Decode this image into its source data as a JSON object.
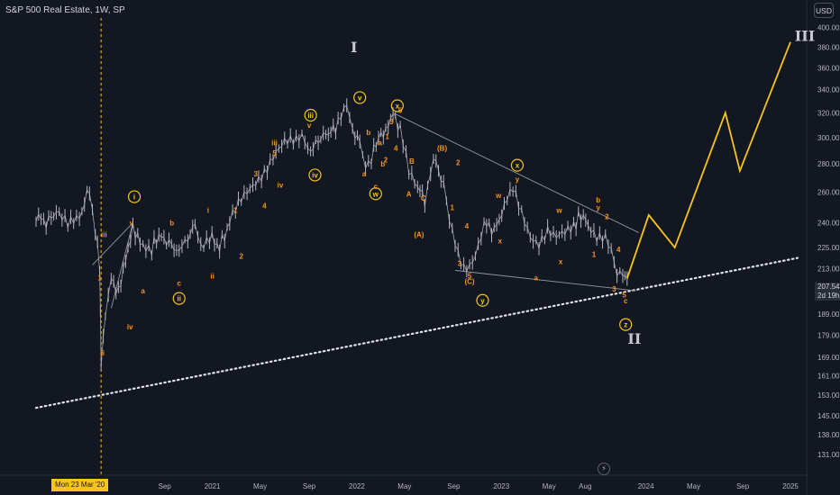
{
  "chart_data": {
    "type": "line",
    "title": "S&P 500 Real Estate, 1W, SP",
    "currency": "USD",
    "ylim": [
      125,
      410
    ],
    "y_ticks": [
      400,
      380,
      360,
      340,
      320,
      300,
      280,
      260,
      240,
      225,
      213,
      201,
      189,
      179,
      169,
      161,
      153,
      145,
      138,
      131
    ],
    "x_ticks": [
      "2020",
      "Sep",
      "2021",
      "May",
      "Sep",
      "2022",
      "May",
      "Sep",
      "2023",
      "May",
      "Aug",
      "2024",
      "May",
      "Sep",
      "2025"
    ],
    "last_price": "207.54",
    "countdown": "2d 19h",
    "cursor_date": "Mon 23 Mar '20",
    "grid": false,
    "price_series": [
      [
        2019.78,
        245
      ],
      [
        2019.85,
        240
      ],
      [
        2019.92,
        247
      ],
      [
        2020.0,
        238
      ],
      [
        2020.08,
        243
      ],
      [
        2020.15,
        263
      ],
      [
        2020.19,
        235
      ],
      [
        2020.22,
        215
      ],
      [
        2020.23,
        165
      ],
      [
        2020.26,
        190
      ],
      [
        2020.3,
        207
      ],
      [
        2020.35,
        200
      ],
      [
        2020.4,
        218
      ],
      [
        2020.45,
        237
      ],
      [
        2020.5,
        228
      ],
      [
        2020.58,
        225
      ],
      [
        2020.63,
        232
      ],
      [
        2020.7,
        228
      ],
      [
        2020.77,
        222
      ],
      [
        2020.83,
        230
      ],
      [
        2020.88,
        240
      ],
      [
        2020.92,
        227
      ],
      [
        2020.98,
        232
      ],
      [
        2021.05,
        225
      ],
      [
        2021.12,
        240
      ],
      [
        2021.2,
        255
      ],
      [
        2021.28,
        266
      ],
      [
        2021.36,
        275
      ],
      [
        2021.42,
        285
      ],
      [
        2021.5,
        295
      ],
      [
        2021.58,
        297
      ],
      [
        2021.62,
        302
      ],
      [
        2021.68,
        290
      ],
      [
        2021.75,
        300
      ],
      [
        2021.82,
        305
      ],
      [
        2021.87,
        310
      ],
      [
        2021.93,
        325
      ],
      [
        2021.97,
        305
      ],
      [
        2022.02,
        297
      ],
      [
        2022.06,
        280
      ],
      [
        2022.1,
        285
      ],
      [
        2022.15,
        300
      ],
      [
        2022.2,
        305
      ],
      [
        2022.25,
        320
      ],
      [
        2022.3,
        305
      ],
      [
        2022.36,
        275
      ],
      [
        2022.42,
        265
      ],
      [
        2022.47,
        255
      ],
      [
        2022.53,
        285
      ],
      [
        2022.6,
        265
      ],
      [
        2022.64,
        240
      ],
      [
        2022.7,
        220
      ],
      [
        2022.74,
        213
      ],
      [
        2022.78,
        215
      ],
      [
        2022.82,
        222
      ],
      [
        2022.88,
        240
      ],
      [
        2022.95,
        235
      ],
      [
        2023.02,
        250
      ],
      [
        2023.08,
        262
      ],
      [
        2023.14,
        247
      ],
      [
        2023.2,
        233
      ],
      [
        2023.26,
        228
      ],
      [
        2023.32,
        235
      ],
      [
        2023.38,
        230
      ],
      [
        2023.44,
        233
      ],
      [
        2023.5,
        238
      ],
      [
        2023.55,
        245
      ],
      [
        2023.6,
        240
      ],
      [
        2023.66,
        232
      ],
      [
        2023.72,
        230
      ],
      [
        2023.76,
        222
      ],
      [
        2023.8,
        208
      ],
      [
        2023.84,
        210
      ],
      [
        2023.87,
        207.54
      ]
    ],
    "projection": [
      [
        2023.87,
        207.54
      ],
      [
        2024.02,
        245
      ],
      [
        2024.2,
        225
      ],
      [
        2024.55,
        320
      ],
      [
        2024.65,
        275
      ],
      [
        2025.0,
        385
      ]
    ],
    "trendlines": [
      {
        "name": "long-term support",
        "points": [
          [
            2019.78,
            148
          ],
          [
            2025.05,
            219
          ]
        ],
        "style": "dotted"
      },
      {
        "name": "upper channel",
        "points": [
          [
            2022.25,
            320
          ],
          [
            2023.95,
            234
          ]
        ],
        "style": "solid"
      },
      {
        "name": "lower channel",
        "points": [
          [
            2022.68,
            212
          ],
          [
            2023.93,
            201
          ]
        ],
        "style": "solid"
      },
      {
        "name": "early wave line 1",
        "points": [
          [
            2020.17,
            215
          ],
          [
            2020.45,
            240
          ]
        ],
        "style": "solid"
      },
      {
        "name": "early wave line 2",
        "points": [
          [
            2020.3,
            192
          ],
          [
            2020.45,
            240
          ]
        ],
        "style": "solid"
      }
    ],
    "cursor_line_x": 2020.23,
    "annotations": [
      {
        "text": "I",
        "x": 2021.98,
        "y": 375,
        "kind": "roman"
      },
      {
        "text": "II",
        "x": 2023.92,
        "y": 175,
        "kind": "roman"
      },
      {
        "text": "III",
        "x": 2025.1,
        "y": 386,
        "kind": "roman"
      },
      {
        "text": "i",
        "x": 2020.46,
        "y": 257,
        "kind": "circle"
      },
      {
        "text": "ii",
        "x": 2020.77,
        "y": 197,
        "kind": "circle"
      },
      {
        "text": "iii",
        "x": 2021.68,
        "y": 318,
        "kind": "circle"
      },
      {
        "text": "iv",
        "x": 2021.71,
        "y": 272,
        "kind": "circle"
      },
      {
        "text": "v",
        "x": 2022.02,
        "y": 333,
        "kind": "circle"
      },
      {
        "text": "w",
        "x": 2022.13,
        "y": 259,
        "kind": "circle"
      },
      {
        "text": "x",
        "x": 2022.28,
        "y": 326,
        "kind": "circle"
      },
      {
        "text": "y",
        "x": 2022.87,
        "y": 196,
        "kind": "circle"
      },
      {
        "text": "x",
        "x": 2023.11,
        "y": 279,
        "kind": "circle"
      },
      {
        "text": "z",
        "x": 2023.86,
        "y": 184,
        "kind": "circle"
      },
      {
        "text": "iii",
        "x": 2020.25,
        "y": 233,
        "kind": "letter"
      },
      {
        "text": "v",
        "x": 2020.44,
        "y": 240,
        "kind": "letter"
      },
      {
        "text": "1",
        "x": 2020.22,
        "y": 208,
        "kind": "letter"
      },
      {
        "text": "ii",
        "x": 2020.24,
        "y": 171,
        "kind": "letter"
      },
      {
        "text": "iv",
        "x": 2020.43,
        "y": 183,
        "kind": "letter"
      },
      {
        "text": "a",
        "x": 2020.52,
        "y": 201,
        "kind": "letter"
      },
      {
        "text": "b",
        "x": 2020.72,
        "y": 240,
        "kind": "letter"
      },
      {
        "text": "c",
        "x": 2020.77,
        "y": 205,
        "kind": "letter"
      },
      {
        "text": "i",
        "x": 2020.97,
        "y": 248,
        "kind": "letter"
      },
      {
        "text": "ii",
        "x": 2021.0,
        "y": 209,
        "kind": "letter"
      },
      {
        "text": "1",
        "x": 2021.16,
        "y": 248,
        "kind": "letter"
      },
      {
        "text": "2",
        "x": 2021.2,
        "y": 220,
        "kind": "letter"
      },
      {
        "text": "3",
        "x": 2021.3,
        "y": 273,
        "kind": "letter"
      },
      {
        "text": "4",
        "x": 2021.36,
        "y": 251,
        "kind": "letter"
      },
      {
        "text": "iii",
        "x": 2021.43,
        "y": 296,
        "kind": "letter"
      },
      {
        "text": "5",
        "x": 2021.43,
        "y": 288,
        "kind": "letter"
      },
      {
        "text": "iv",
        "x": 2021.47,
        "y": 265,
        "kind": "letter"
      },
      {
        "text": "v",
        "x": 2021.67,
        "y": 310,
        "kind": "letter"
      },
      {
        "text": "b",
        "x": 2022.08,
        "y": 304,
        "kind": "letter"
      },
      {
        "text": "a",
        "x": 2022.05,
        "y": 273,
        "kind": "letter"
      },
      {
        "text": "c",
        "x": 2022.13,
        "y": 264,
        "kind": "letter"
      },
      {
        "text": "a",
        "x": 2022.16,
        "y": 296,
        "kind": "letter"
      },
      {
        "text": "b",
        "x": 2022.18,
        "y": 280,
        "kind": "letter"
      },
      {
        "text": "1",
        "x": 2022.21,
        "y": 301,
        "kind": "letter"
      },
      {
        "text": "2",
        "x": 2022.2,
        "y": 283,
        "kind": "letter"
      },
      {
        "text": "3",
        "x": 2022.24,
        "y": 313,
        "kind": "letter"
      },
      {
        "text": "4",
        "x": 2022.27,
        "y": 292,
        "kind": "letter"
      },
      {
        "text": "5",
        "x": 2022.3,
        "y": 322,
        "kind": "letter"
      },
      {
        "text": "A",
        "x": 2022.36,
        "y": 259,
        "kind": "letter"
      },
      {
        "text": "B",
        "x": 2022.38,
        "y": 282,
        "kind": "letter"
      },
      {
        "text": "C",
        "x": 2022.46,
        "y": 256,
        "kind": "letter"
      },
      {
        "text": "(A)",
        "x": 2022.43,
        "y": 233,
        "kind": "letter"
      },
      {
        "text": "(B)",
        "x": 2022.59,
        "y": 292,
        "kind": "letter"
      },
      {
        "text": "1",
        "x": 2022.66,
        "y": 250,
        "kind": "letter"
      },
      {
        "text": "2",
        "x": 2022.7,
        "y": 281,
        "kind": "letter"
      },
      {
        "text": "3",
        "x": 2022.71,
        "y": 216,
        "kind": "letter"
      },
      {
        "text": "4",
        "x": 2022.76,
        "y": 238,
        "kind": "letter"
      },
      {
        "text": "5",
        "x": 2022.78,
        "y": 209,
        "kind": "letter"
      },
      {
        "text": "(C)",
        "x": 2022.78,
        "y": 206,
        "kind": "letter"
      },
      {
        "text": "w",
        "x": 2022.98,
        "y": 258,
        "kind": "letter"
      },
      {
        "text": "x",
        "x": 2022.99,
        "y": 229,
        "kind": "letter"
      },
      {
        "text": "y",
        "x": 2023.11,
        "y": 269,
        "kind": "letter"
      },
      {
        "text": "a",
        "x": 2023.24,
        "y": 208,
        "kind": "letter"
      },
      {
        "text": "w",
        "x": 2023.4,
        "y": 248,
        "kind": "letter"
      },
      {
        "text": "x",
        "x": 2023.41,
        "y": 217,
        "kind": "letter"
      },
      {
        "text": "b",
        "x": 2023.67,
        "y": 255,
        "kind": "letter"
      },
      {
        "text": "y",
        "x": 2023.67,
        "y": 250,
        "kind": "letter"
      },
      {
        "text": "1",
        "x": 2023.64,
        "y": 221,
        "kind": "letter"
      },
      {
        "text": "2",
        "x": 2023.73,
        "y": 244,
        "kind": "letter"
      },
      {
        "text": "3",
        "x": 2023.78,
        "y": 202,
        "kind": "letter"
      },
      {
        "text": "4",
        "x": 2023.81,
        "y": 224,
        "kind": "letter"
      },
      {
        "text": "5",
        "x": 2023.85,
        "y": 199,
        "kind": "letter"
      },
      {
        "text": "c",
        "x": 2023.86,
        "y": 196,
        "kind": "letter"
      }
    ],
    "colors": {
      "background": "#131722",
      "price": "#b2b5be",
      "projection": "#f7c51a",
      "wave_label": "#f7931a",
      "roman": "#c8c9cc",
      "trendline": "#9598a1",
      "support": "#e0e3eb",
      "cursor": "#f7c51a",
      "axis_text": "#b2b5be"
    }
  }
}
